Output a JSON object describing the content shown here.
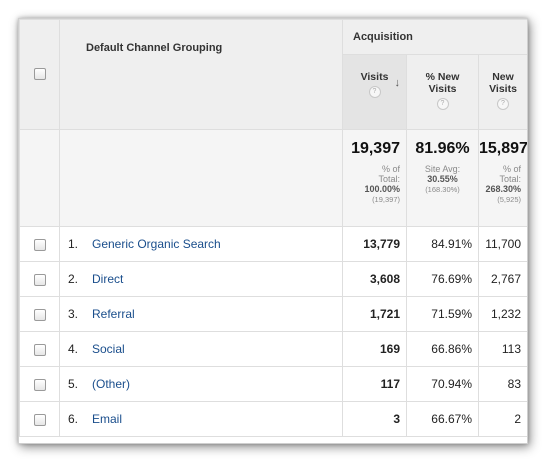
{
  "header": {
    "group_label": "Acquisition",
    "dimension_label": "Default Channel Grouping",
    "columns": [
      {
        "label_line1": "Visits",
        "label_line2": "",
        "help": "?",
        "sorted": true,
        "sort_icon": "arrow-down-icon"
      },
      {
        "label_line1": "% New",
        "label_line2": "Visits",
        "help": "?"
      },
      {
        "label_line1": "New",
        "label_line2": "Visits",
        "help": "?"
      }
    ]
  },
  "totals": {
    "visits": {
      "value": "19,397",
      "l1": "% of",
      "l2": "Total:",
      "bold": "100.00%",
      "small": "(19,397)"
    },
    "new_pct": {
      "value": "81.96%",
      "l1": "Site Avg:",
      "bold": "30.55%",
      "small": "(168.30%)"
    },
    "new_visits": {
      "value": "15,897",
      "l1": "% of",
      "l2": "Total:",
      "bold": "268.30%",
      "small": "(5,925)"
    }
  },
  "rows": [
    {
      "num": "1.",
      "channel": "Generic Organic Search",
      "visits": "13,779",
      "new_pct": "84.91%",
      "new_visits": "11,700"
    },
    {
      "num": "2.",
      "channel": "Direct",
      "visits": "3,608",
      "new_pct": "76.69%",
      "new_visits": "2,767"
    },
    {
      "num": "3.",
      "channel": "Referral",
      "visits": "1,721",
      "new_pct": "71.59%",
      "new_visits": "1,232"
    },
    {
      "num": "4.",
      "channel": "Social",
      "visits": "169",
      "new_pct": "66.86%",
      "new_visits": "113"
    },
    {
      "num": "5.",
      "channel": "(Other)",
      "visits": "117",
      "new_pct": "70.94%",
      "new_visits": "83"
    },
    {
      "num": "6.",
      "channel": "Email",
      "visits": "3",
      "new_pct": "66.67%",
      "new_visits": "2"
    }
  ]
}
